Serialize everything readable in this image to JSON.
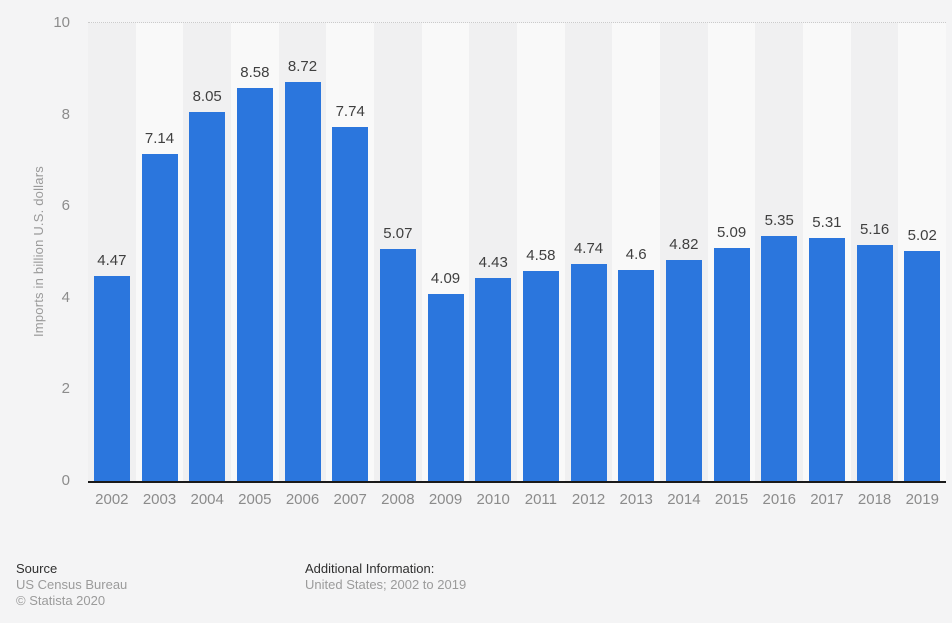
{
  "chart_data": {
    "type": "bar",
    "title": "",
    "xlabel": "",
    "ylabel": "Imports in billion U.S. dollars",
    "categories": [
      "2002",
      "2003",
      "2004",
      "2005",
      "2006",
      "2007",
      "2008",
      "2009",
      "2010",
      "2011",
      "2012",
      "2013",
      "2014",
      "2015",
      "2016",
      "2017",
      "2018",
      "2019"
    ],
    "values": [
      4.47,
      7.14,
      8.05,
      8.58,
      8.72,
      7.74,
      5.07,
      4.09,
      4.43,
      4.58,
      4.74,
      4.6,
      4.82,
      5.09,
      5.35,
      5.31,
      5.16,
      5.02
    ],
    "value_labels": [
      "4.47",
      "7.14",
      "8.05",
      "8.58",
      "8.72",
      "7.74",
      "5.07",
      "4.09",
      "4.43",
      "4.58",
      "4.74",
      "4.6",
      "4.82",
      "5.09",
      "5.35",
      "5.31",
      "5.16",
      "5.02"
    ],
    "ylim": [
      0,
      10
    ],
    "yticks": [
      0,
      2,
      4,
      6,
      8,
      10
    ],
    "grid": "horizontal-dotted",
    "legend": "none",
    "bar_color": "#2b76dd"
  },
  "footer": {
    "source_heading": "Source",
    "source_name": "US Census Bureau",
    "copyright": "© Statista 2020",
    "additional_heading": "Additional Information:",
    "additional_text": "United States; 2002 to 2019"
  }
}
